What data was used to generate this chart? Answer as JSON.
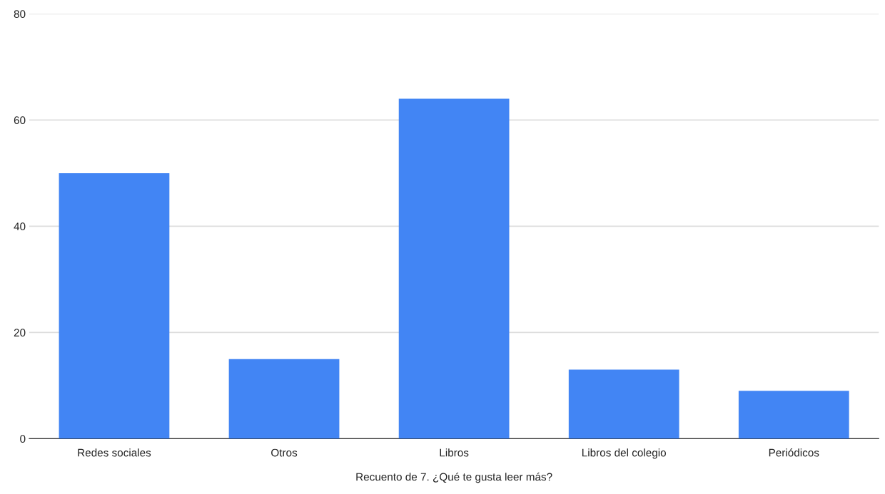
{
  "chart_data": {
    "type": "bar",
    "xlabel": "Recuento de 7. ¿Qué te gusta leer más?",
    "categories": [
      "Redes sociales",
      "Otros",
      "Libros",
      "Libros del colegio",
      "Periódicos"
    ],
    "values": [
      50,
      15,
      64,
      13,
      9
    ],
    "color": "#4285f4",
    "ylim": [
      0,
      80
    ],
    "yticks": [
      0,
      20,
      40,
      60,
      80
    ],
    "grid": "y",
    "legend": false
  }
}
